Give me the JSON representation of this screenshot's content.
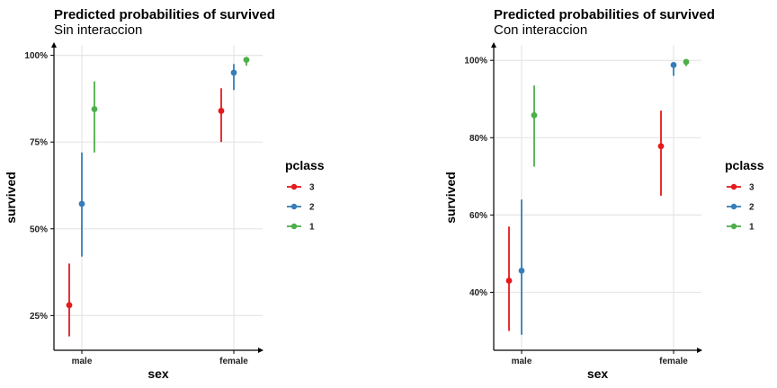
{
  "chart_data": [
    {
      "type": "scatter",
      "title": "Predicted probabilities of survived",
      "subtitle": "Sin interaccion",
      "xlabel": "sex",
      "ylabel": "survived",
      "categories": [
        "male",
        "female"
      ],
      "ylim": [
        0.15,
        1.03
      ],
      "y_ticks": [
        0.25,
        0.5,
        0.75,
        1.0
      ],
      "y_tick_labels": [
        "25%",
        "50%",
        "75%",
        "100%"
      ],
      "grid": true,
      "legend_title": "pclass",
      "legend_position": "right",
      "series": [
        {
          "name": "3",
          "color": "#e41a1c",
          "values": [
            0.28,
            0.84
          ],
          "lower": [
            0.19,
            0.75
          ],
          "upper": [
            0.4,
            0.905
          ]
        },
        {
          "name": "2",
          "color": "#377eb8",
          "values": [
            0.572,
            0.95
          ],
          "lower": [
            0.42,
            0.9
          ],
          "upper": [
            0.72,
            0.975
          ]
        },
        {
          "name": "1",
          "color": "#4daf4a",
          "values": [
            0.845,
            0.987
          ],
          "lower": [
            0.72,
            0.97
          ],
          "upper": [
            0.925,
            0.995
          ]
        }
      ]
    },
    {
      "type": "scatter",
      "title": "Predicted probabilities of survived",
      "subtitle": "Con interaccion",
      "xlabel": "sex",
      "ylabel": "survived",
      "categories": [
        "male",
        "female"
      ],
      "ylim": [
        0.25,
        1.04
      ],
      "y_ticks": [
        0.4,
        0.6,
        0.8,
        1.0
      ],
      "y_tick_labels": [
        "40%",
        "60%",
        "80%",
        "100%"
      ],
      "grid": true,
      "legend_title": "pclass",
      "legend_position": "right",
      "series": [
        {
          "name": "3",
          "color": "#e41a1c",
          "values": [
            0.43,
            0.778
          ],
          "lower": [
            0.3,
            0.65
          ],
          "upper": [
            0.57,
            0.87
          ]
        },
        {
          "name": "2",
          "color": "#377eb8",
          "values": [
            0.456,
            0.988
          ],
          "lower": [
            0.29,
            0.96
          ],
          "upper": [
            0.64,
            0.995
          ]
        },
        {
          "name": "1",
          "color": "#4daf4a",
          "values": [
            0.858,
            0.996
          ],
          "lower": [
            0.725,
            0.985
          ],
          "upper": [
            0.935,
            1.0
          ]
        }
      ]
    }
  ]
}
